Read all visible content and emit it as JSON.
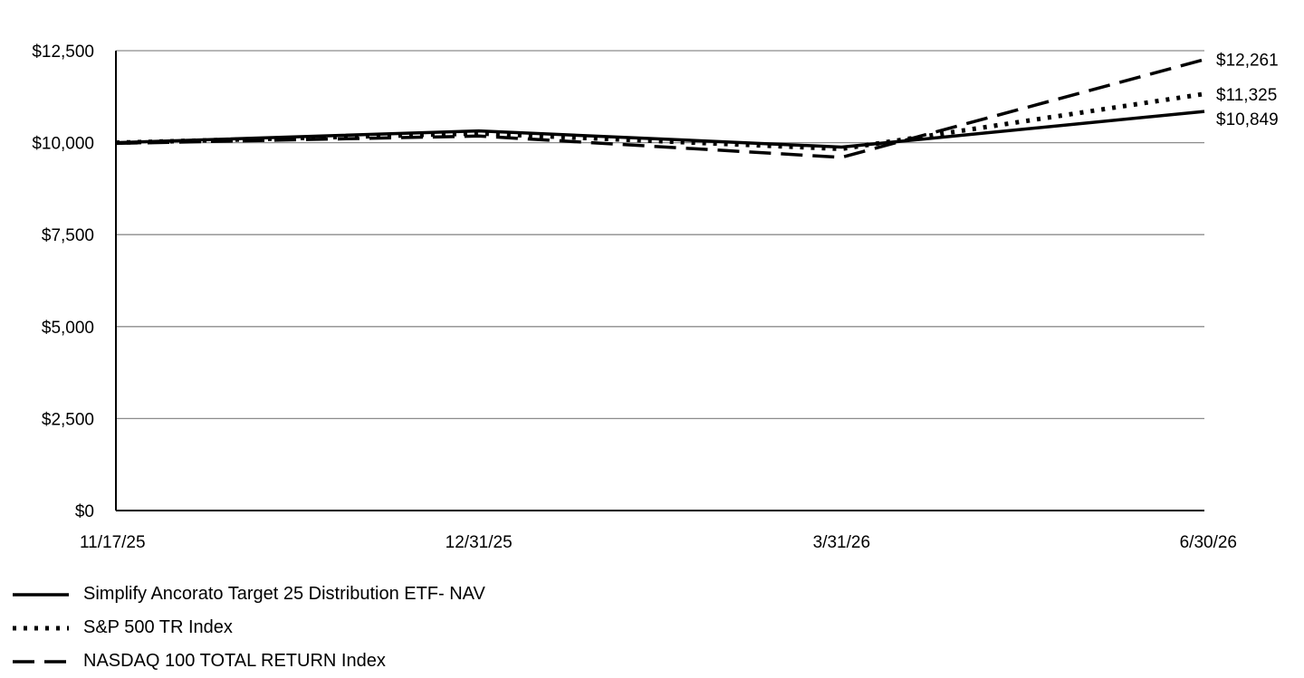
{
  "chart_data": {
    "type": "line",
    "title": "",
    "xlabel": "",
    "ylabel": "",
    "categories": [
      "11/17/25",
      "12/31/25",
      "3/31/26",
      "6/30/26"
    ],
    "ylim": [
      0,
      12500
    ],
    "yticks": [
      0,
      2500,
      5000,
      7500,
      10000,
      12500
    ],
    "ytick_labels": [
      "$0",
      "$2,500",
      "$5,000",
      "$7,500",
      "$10,000",
      "$12,500"
    ],
    "grid": true,
    "legend_position": "bottom-left",
    "series": [
      {
        "name": "Simplify Ancorato Target 25 Distribution ETF- NAV",
        "style": "solid",
        "color": "#000000",
        "values": [
          10000,
          10320,
          9880,
          10849
        ],
        "end_label": "$10,849"
      },
      {
        "name": "S&P 500 TR Index",
        "style": "dotted",
        "color": "#000000",
        "values": [
          10000,
          10250,
          9830,
          11325
        ],
        "end_label": "$11,325"
      },
      {
        "name": "NASDAQ 100 TOTAL RETURN Index",
        "style": "dashed",
        "color": "#000000",
        "values": [
          9980,
          10180,
          9600,
          12261
        ],
        "end_label": "$12,261"
      }
    ]
  }
}
